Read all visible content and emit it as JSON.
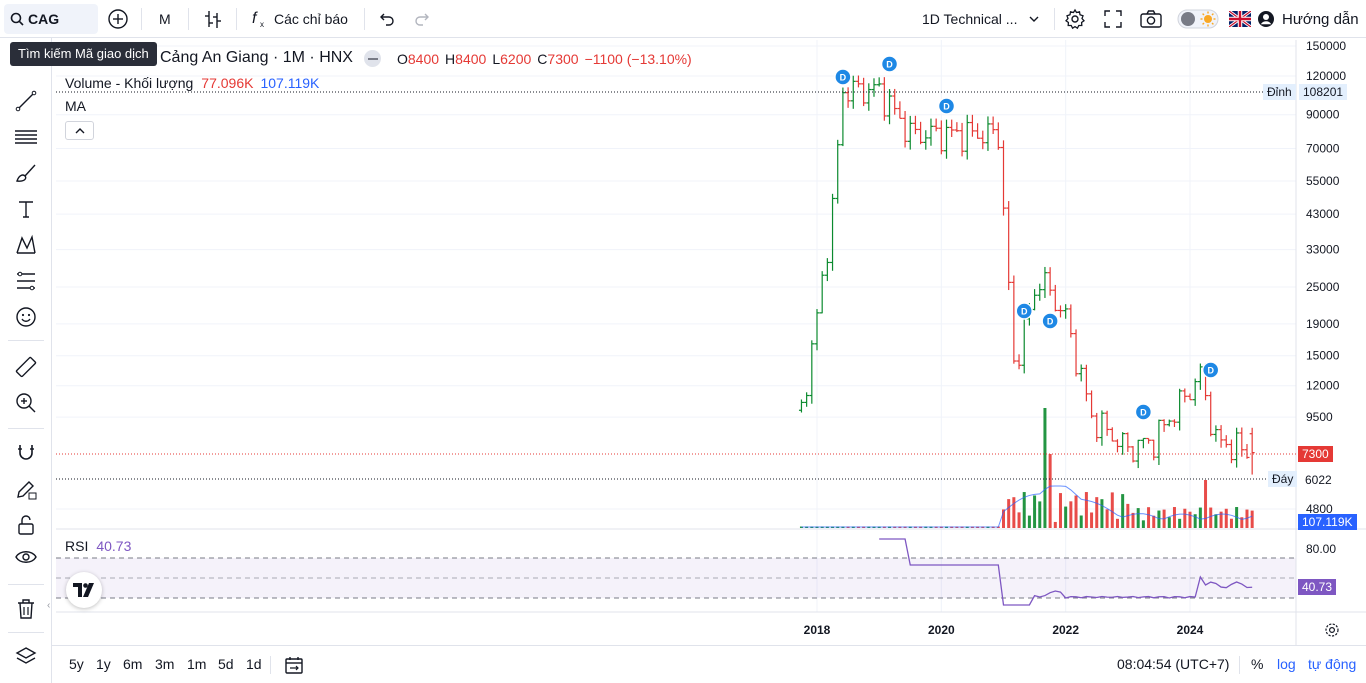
{
  "toolbar": {
    "symbol": "CAG",
    "interval": "M",
    "indicators_label": "Các chỉ báo",
    "layout_name": "1D Technical ...",
    "guide_label": "Hướng dẫn",
    "search_tooltip": "Tìm kiếm Mã giao dịch"
  },
  "legend": {
    "title": "Cảng An Giang · 1M · HNX",
    "open_label": "O",
    "open": "8400",
    "high_label": "H",
    "high": "8400",
    "low_label": "L",
    "low": "6200",
    "close_label": "C",
    "close": "7300",
    "change": "−1100 (−13.10%)",
    "volume_label": "Volume - Khối lượng",
    "volume_value": "77.096K",
    "volume_ma": "107.119K",
    "ma_label": "MA",
    "rsi_label": "RSI",
    "rsi_value": "40.73"
  },
  "price_axis": {
    "ticks": [
      "150000",
      "120000",
      "90000",
      "70000",
      "55000",
      "43000",
      "33000",
      "25000",
      "19000",
      "15000",
      "12000",
      "9500",
      "4800"
    ],
    "peak_label": "Đỉnh",
    "peak_value": "108201",
    "last_price": "7300",
    "trough_label": "Đáy",
    "trough_value": "6022",
    "volume_ma_tag": "107.119K",
    "rsi_level": "80.00",
    "rsi_tag": "40.73"
  },
  "time_axis": {
    "labels": [
      "2018",
      "2020",
      "2022",
      "2024"
    ]
  },
  "bottom": {
    "ranges": [
      "5y",
      "1y",
      "6m",
      "3m",
      "1m",
      "5d",
      "1d"
    ],
    "clock": "08:04:54 (UTC+7)",
    "percent": "%",
    "log": "log",
    "auto": "tự động"
  },
  "colors": {
    "up": "#089981",
    "down": "#f23645",
    "candle_up": "#0b8a2e",
    "candle_down": "#e53935",
    "rsi": "#7e57c2",
    "volume_ma": "#2962ff",
    "dividend_marker": "#1e88e5"
  },
  "chart_data": {
    "type": "bar",
    "title": "Cảng An Giang · 1M · HNX",
    "price_scale": "log",
    "x_range": [
      "2017-09",
      "2025-02"
    ],
    "price_ylim": [
      4800,
      150000
    ],
    "candles_approx": [
      {
        "t": "2017-10",
        "close": 10000
      },
      {
        "t": "2018-01",
        "close": 20000
      },
      {
        "t": "2018-04",
        "close": 45000
      },
      {
        "t": "2018-06",
        "close": 108000
      },
      {
        "t": "2019-01",
        "close": 108000
      },
      {
        "t": "2019-07",
        "close": 78000
      },
      {
        "t": "2020-12",
        "close": 78000
      },
      {
        "t": "2021-03",
        "close": 14000
      },
      {
        "t": "2021-08",
        "close": 27000
      },
      {
        "t": "2022-01",
        "close": 20000
      },
      {
        "t": "2022-06",
        "close": 9500
      },
      {
        "t": "2023-01",
        "close": 7500
      },
      {
        "t": "2023-06",
        "close": 8000
      },
      {
        "t": "2024-03",
        "close": 13000
      },
      {
        "t": "2024-06",
        "close": 8000
      },
      {
        "t": "2025-01",
        "close": 7300
      }
    ],
    "dividend_markers": [
      {
        "t": "2018-06",
        "label": "D"
      },
      {
        "t": "2019-03",
        "label": "D"
      },
      {
        "t": "2020-02",
        "label": "D"
      },
      {
        "t": "2021-05",
        "label": "D"
      },
      {
        "t": "2021-10",
        "label": "D"
      },
      {
        "t": "2023-04",
        "label": "D"
      },
      {
        "t": "2024-05",
        "label": "D"
      }
    ],
    "rsi": {
      "value": 40.73,
      "upper": 70,
      "lower": 30
    }
  }
}
